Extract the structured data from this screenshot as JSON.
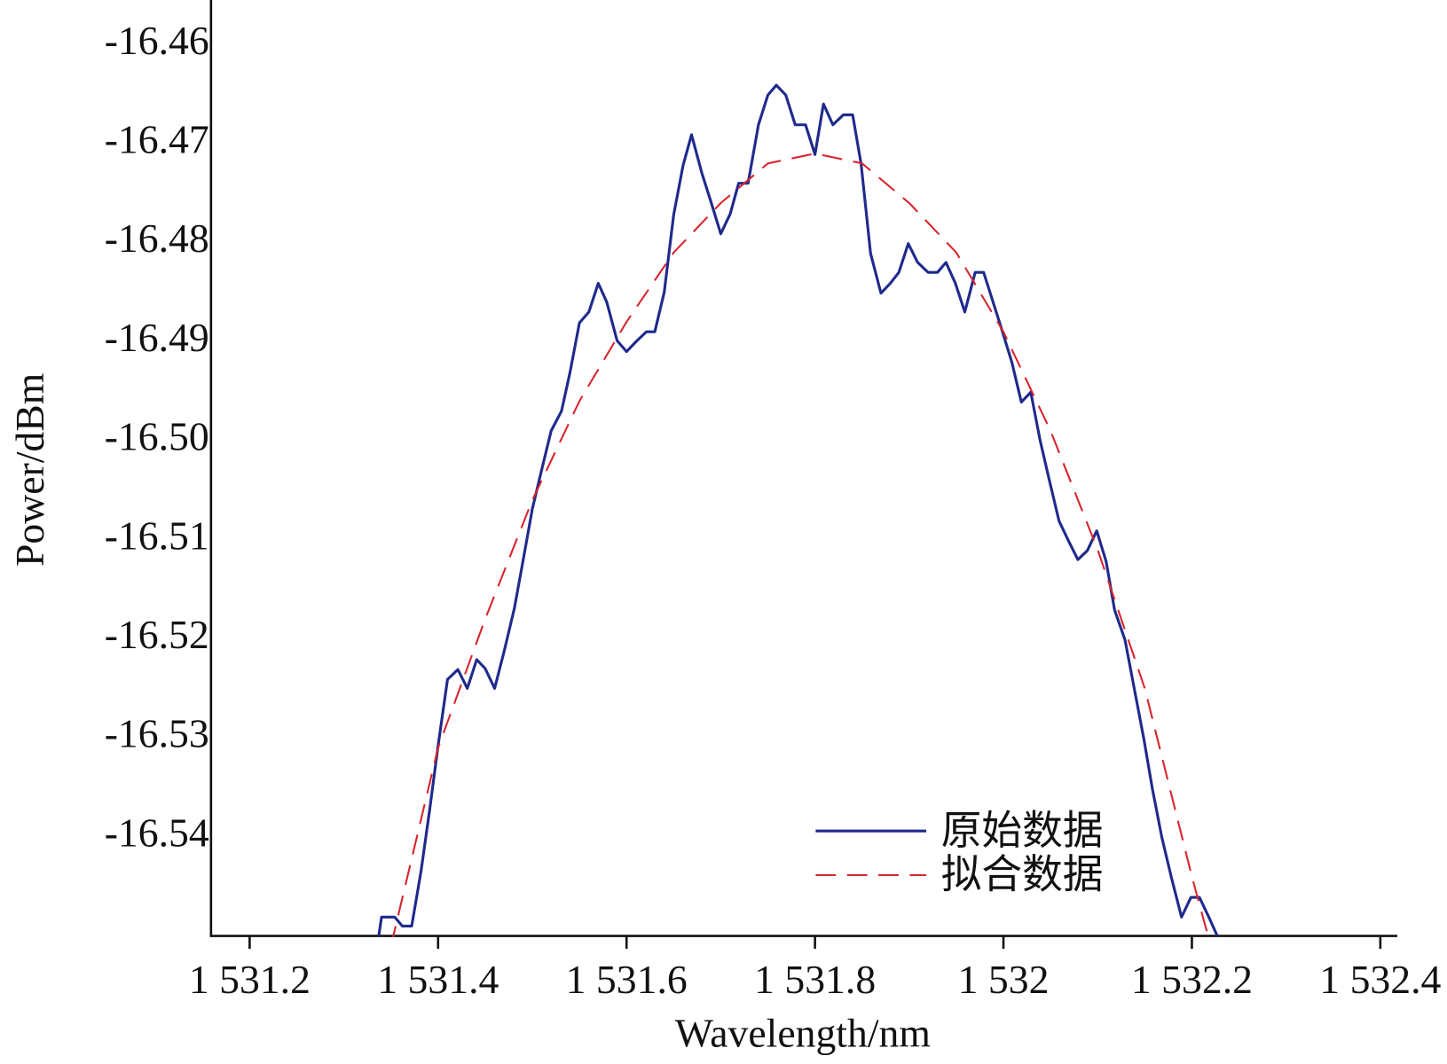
{
  "chart_data": {
    "type": "line",
    "x_label": "Wavelength/nm",
    "y_label": "Power/dBm",
    "xlim": [
      1531.159,
      1532.418
    ],
    "ylim": [
      -16.55,
      -16.4555
    ],
    "xticks": [
      {
        "value": 1531.2,
        "label": "1 531.2"
      },
      {
        "value": 1531.4,
        "label": "1 531.4"
      },
      {
        "value": 1531.6,
        "label": "1 531.6"
      },
      {
        "value": 1531.8,
        "label": "1 531.8"
      },
      {
        "value": 1532,
        "label": "1 532"
      },
      {
        "value": 1532.2,
        "label": "1 532.2"
      },
      {
        "value": 1532.4,
        "label": "1 532.4"
      }
    ],
    "yticks": [
      -16.46,
      -16.47,
      -16.48,
      -16.49,
      {
        "value": -16.5,
        "label": "-16.50"
      },
      -16.51,
      -16.52,
      -16.53,
      -16.54
    ],
    "legend": "lower right",
    "series": [
      {
        "name": "原始数据",
        "color": "#1f2a8c",
        "dash": false,
        "x": [
          1531.337,
          1531.34,
          1531.354,
          1531.362,
          1531.372,
          1531.382,
          1531.391,
          1531.4,
          1531.41,
          1531.421,
          1531.431,
          1531.441,
          1531.45,
          1531.46,
          1531.47,
          1531.481,
          1531.49,
          1531.5,
          1531.51,
          1531.52,
          1531.531,
          1531.54,
          1531.55,
          1531.56,
          1531.57,
          1531.579,
          1531.59,
          1531.6,
          1531.61,
          1531.621,
          1531.63,
          1531.64,
          1531.65,
          1531.66,
          1531.669,
          1531.68,
          1531.69,
          1531.7,
          1531.71,
          1531.719,
          1531.729,
          1531.74,
          1531.75,
          1531.759,
          1531.769,
          1531.779,
          1531.79,
          1531.8,
          1531.809,
          1531.819,
          1531.83,
          1531.84,
          1531.849,
          1531.859,
          1531.87,
          1531.88,
          1531.889,
          1531.899,
          1531.909,
          1531.92,
          1531.93,
          1531.939,
          1531.949,
          1531.959,
          1531.97,
          1531.979,
          1531.989,
          1531.999,
          1532.009,
          1532.019,
          1532.029,
          1532.039,
          1532.049,
          1532.059,
          1532.069,
          1532.079,
          1532.089,
          1532.099,
          1532.109,
          1532.118,
          1532.129,
          1532.139,
          1532.149,
          1532.158,
          1532.168,
          1532.178,
          1532.189,
          1532.199,
          1532.208,
          1532.218,
          1532.227
        ],
        "values": [
          -16.55,
          -16.5481,
          -16.5481,
          -16.549,
          -16.549,
          -16.5434,
          -16.5373,
          -16.5308,
          -16.5241,
          -16.5231,
          -16.525,
          -16.5221,
          -16.523,
          -16.525,
          -16.5213,
          -16.5169,
          -16.5122,
          -16.5069,
          -16.5029,
          -16.499,
          -16.497,
          -16.4931,
          -16.4881,
          -16.487,
          -16.4841,
          -16.486,
          -16.4899,
          -16.491,
          -16.49,
          -16.489,
          -16.489,
          -16.485,
          -16.4772,
          -16.4722,
          -16.4691,
          -16.473,
          -16.476,
          -16.4791,
          -16.4771,
          -16.474,
          -16.474,
          -16.4681,
          -16.4651,
          -16.4641,
          -16.4651,
          -16.4681,
          -16.4681,
          -16.4711,
          -16.466,
          -16.4681,
          -16.4671,
          -16.4671,
          -16.4721,
          -16.4811,
          -16.4851,
          -16.4841,
          -16.483,
          -16.4801,
          -16.482,
          -16.483,
          -16.483,
          -16.482,
          -16.4841,
          -16.487,
          -16.483,
          -16.483,
          -16.486,
          -16.489,
          -16.4921,
          -16.4961,
          -16.4951,
          -16.5,
          -16.5041,
          -16.5081,
          -16.5101,
          -16.512,
          -16.5111,
          -16.5091,
          -16.5122,
          -16.5171,
          -16.5201,
          -16.5251,
          -16.5301,
          -16.5351,
          -16.54,
          -16.544,
          -16.5481,
          -16.5461,
          -16.5461,
          -16.5481,
          -16.55
        ]
      },
      {
        "name": "拟合数据",
        "color": "#d8242c",
        "dash": true,
        "x": [
          1531.35,
          1531.4,
          1531.45,
          1531.5,
          1531.55,
          1531.6,
          1531.65,
          1531.7,
          1531.75,
          1531.8,
          1531.85,
          1531.9,
          1531.95,
          1532,
          1532.05,
          1532.1,
          1532.15,
          1532.2,
          1532.22
        ],
        "values": [
          -16.551,
          -16.531,
          -16.518,
          -16.506,
          -16.496,
          -16.488,
          -16.481,
          -16.476,
          -16.472,
          -16.471,
          -16.472,
          -16.476,
          -16.481,
          -16.489,
          -16.499,
          -16.511,
          -16.525,
          -16.544,
          -16.551
        ]
      }
    ]
  }
}
